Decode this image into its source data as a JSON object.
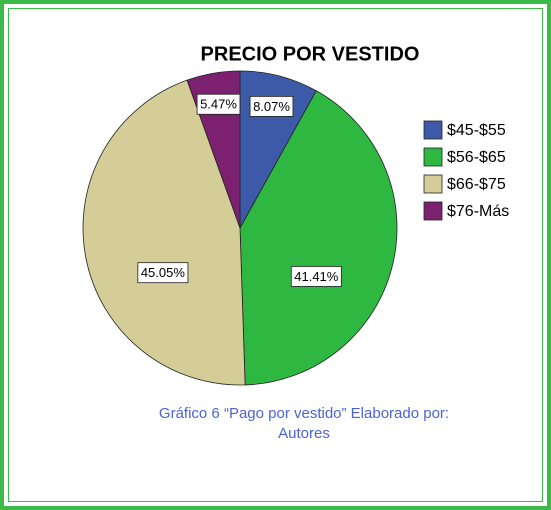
{
  "chart_data": {
    "type": "pie",
    "title": "PRECIO POR VESTIDO",
    "categories": [
      "$45-$55",
      "$56-$65",
      "$66-$75",
      "$76-Más"
    ],
    "values": [
      8.07,
      41.41,
      45.05,
      5.47
    ],
    "value_labels": [
      "8.07%",
      "41.41%",
      "45.05%",
      "5.47%"
    ],
    "colors": [
      "#3d5aa8",
      "#2fb841",
      "#d4cd98",
      "#7c2170"
    ],
    "legend": "right",
    "caption": "Gráfico 6 “Pago por vestido” Elaborado  por: Autores"
  }
}
